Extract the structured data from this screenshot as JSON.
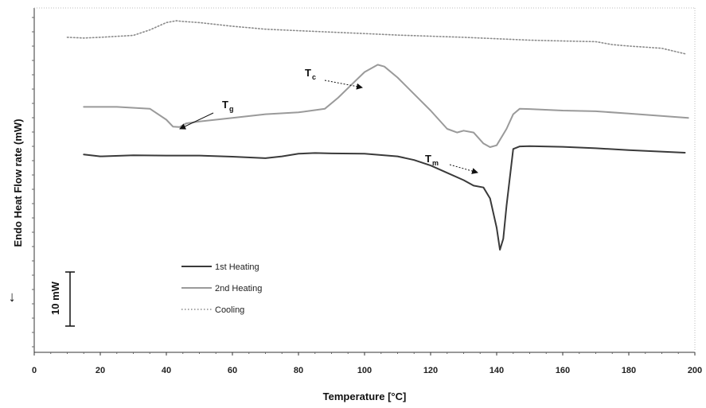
{
  "chart_data": {
    "type": "line",
    "xlabel": "Temperature [°C]",
    "ylabel": "Endo Heat Flow rate (mW)",
    "xlim": [
      0,
      200
    ],
    "x_ticks": [
      "0",
      "20",
      "40",
      "60",
      "80",
      "100",
      "120",
      "140",
      "160",
      "180",
      "200"
    ],
    "grid": false,
    "legend_position": "lower-left",
    "scale_bar_label": "10 mW",
    "endo_arrow": "←",
    "series": [
      {
        "name": "1st Heating",
        "style": "solid",
        "color": "#3a3a3a",
        "x": [
          15,
          20,
          30,
          40,
          50,
          60,
          70,
          75,
          80,
          85,
          90,
          100,
          110,
          115,
          120,
          125,
          130,
          133,
          136,
          138,
          140,
          141,
          142,
          143,
          145,
          147,
          150,
          160,
          170,
          180,
          197
        ],
        "y": [
          -26,
          -26.5,
          -26.2,
          -26.3,
          -26.3,
          -26.6,
          -27,
          -26.5,
          -25.8,
          -25.6,
          -25.7,
          -25.8,
          -26.5,
          -27.5,
          -29,
          -31,
          -33,
          -34.5,
          -35,
          -38,
          -46,
          -52,
          -49,
          -40,
          -24.5,
          -23.8,
          -23.7,
          -23.9,
          -24.3,
          -24.8,
          -25.5
        ]
      },
      {
        "name": "2nd Heating",
        "style": "solid",
        "color": "#9a9a9a",
        "x": [
          15,
          25,
          35,
          40,
          42,
          44,
          46,
          50,
          60,
          70,
          80,
          88,
          92,
          96,
          100,
          104,
          106,
          110,
          115,
          120,
          125,
          128,
          130,
          133,
          136,
          138,
          140,
          143,
          145,
          147,
          150,
          160,
          170,
          180,
          198
        ],
        "y": [
          -13,
          -13,
          -13.5,
          -16.5,
          -18.4,
          -18.5,
          -17.5,
          -17,
          -16,
          -15,
          -14.5,
          -13.5,
          -10.5,
          -7,
          -3.5,
          -1.5,
          -2,
          -5,
          -9.5,
          -14,
          -19,
          -20,
          -19.5,
          -20,
          -23,
          -24,
          -23.5,
          -19,
          -15,
          -13.5,
          -13.6,
          -14,
          -14.2,
          -14.8,
          -16
        ]
      },
      {
        "name": "Cooling",
        "style": "dotted",
        "color": "#8a8a8a",
        "x": [
          10,
          15,
          20,
          30,
          35,
          40,
          43,
          45,
          50,
          60,
          70,
          80,
          90,
          100,
          110,
          120,
          130,
          140,
          150,
          160,
          170,
          175,
          180,
          190,
          197
        ],
        "y": [
          6,
          5.8,
          6,
          6.5,
          8,
          10,
          10.5,
          10.3,
          10,
          9,
          8.2,
          7.8,
          7.4,
          7,
          6.6,
          6.3,
          6,
          5.6,
          5.2,
          5,
          4.8,
          4,
          3.6,
          3,
          1.5
        ]
      }
    ],
    "annotations": [
      {
        "label": "T",
        "sub": "g"
      },
      {
        "label": "T",
        "sub": "c"
      },
      {
        "label": "T",
        "sub": "m"
      }
    ]
  }
}
